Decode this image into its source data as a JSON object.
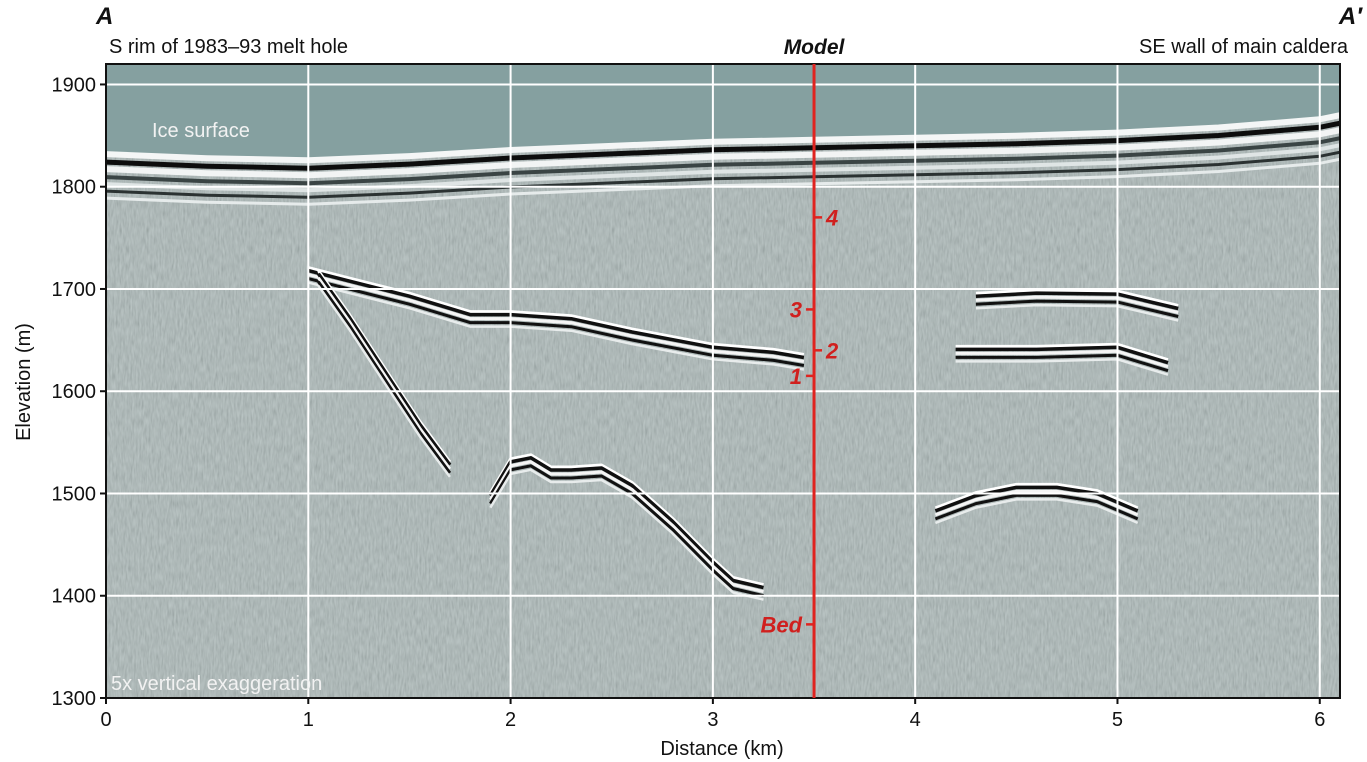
{
  "chart_data": {
    "type": "radar_profile",
    "xlabel": "Distance (km)",
    "ylabel": "Elevation (m)",
    "xlim": [
      0,
      6.1
    ],
    "ylim": [
      1300,
      1920
    ],
    "xticks": [
      0,
      1,
      2,
      3,
      4,
      5,
      6
    ],
    "yticks": [
      1300,
      1400,
      1500,
      1600,
      1700,
      1800,
      1900
    ],
    "grid": true,
    "left_label": "A",
    "right_label": "A′",
    "left_caption": "S rim of 1983–93 melt hole",
    "right_caption": "SE wall of main caldera",
    "model_label": "Model",
    "model_x": 3.5,
    "annotations": {
      "ice_surface": "Ice surface",
      "exaggeration": "5x vertical exaggeration"
    },
    "ice_surface": {
      "x": [
        0,
        0.5,
        1,
        1.5,
        2,
        2.5,
        3,
        3.5,
        4,
        4.5,
        5,
        5.5,
        6,
        6.1
      ],
      "y": [
        1828,
        1824,
        1822,
        1826,
        1832,
        1836,
        1840,
        1842,
        1844,
        1846,
        1849,
        1854,
        1862,
        1866
      ]
    },
    "reflectors": [
      {
        "x": [
          1.0,
          1.2,
          1.5,
          1.8,
          2.0,
          2.3,
          2.6,
          3.0,
          3.3,
          3.45
        ],
        "y": [
          1715,
          1705,
          1690,
          1672,
          1672,
          1668,
          1655,
          1640,
          1635,
          1630
        ]
      },
      {
        "x": [
          4.2,
          4.6,
          5.0,
          5.25
        ],
        "y": [
          1638,
          1638,
          1640,
          1625
        ]
      },
      {
        "x": [
          4.3,
          4.6,
          5.0,
          5.3
        ],
        "y": [
          1690,
          1693,
          1692,
          1678
        ]
      },
      {
        "x": [
          1.05,
          1.2,
          1.4,
          1.55,
          1.7
        ],
        "y": [
          1712,
          1670,
          1610,
          1565,
          1525
        ]
      },
      {
        "x": [
          1.9,
          2.0,
          2.1,
          2.2,
          2.3,
          2.45,
          2.6,
          2.8,
          3.0,
          3.1,
          3.25
        ],
        "y": [
          1495,
          1528,
          1532,
          1520,
          1520,
          1522,
          1505,
          1470,
          1430,
          1412,
          1405
        ]
      },
      {
        "x": [
          4.1,
          4.3,
          4.5,
          4.7,
          4.9,
          5.1
        ],
        "y": [
          1480,
          1495,
          1503,
          1503,
          1497,
          1480
        ]
      }
    ],
    "model_markers": [
      {
        "label": "4",
        "elevation": 1770,
        "side": "right"
      },
      {
        "label": "3",
        "elevation": 1680,
        "side": "left"
      },
      {
        "label": "2",
        "elevation": 1640,
        "side": "right"
      },
      {
        "label": "1",
        "elevation": 1615,
        "side": "left"
      },
      {
        "label": "Bed",
        "elevation": 1372,
        "side": "left"
      }
    ]
  }
}
